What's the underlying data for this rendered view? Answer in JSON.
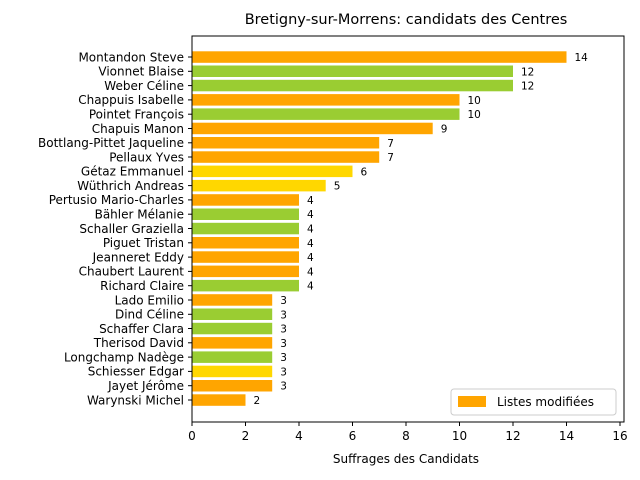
{
  "chart_data": {
    "type": "bar",
    "orientation": "horizontal",
    "title": "Bretigny-sur-Morrens: candidats des Centres",
    "xlabel": "Suffrages des Candidats",
    "ylabel": "",
    "xlim": [
      0,
      16
    ],
    "xticks": [
      "0",
      "2",
      "4",
      "6",
      "8",
      "10",
      "12",
      "14",
      "16"
    ],
    "grid": false,
    "legend": {
      "position": "lower-right",
      "entries": [
        {
          "label": "Listes modifiées",
          "color": "#ffa500"
        }
      ]
    },
    "bars": [
      {
        "name": "Montandon Steve",
        "value": 14,
        "color": "#ffa500"
      },
      {
        "name": "Vionnet Blaise",
        "value": 12,
        "color": "#9acd32"
      },
      {
        "name": "Weber Céline",
        "value": 12,
        "color": "#9acd32"
      },
      {
        "name": "Chappuis Isabelle",
        "value": 10,
        "color": "#ffa500"
      },
      {
        "name": "Pointet François",
        "value": 10,
        "color": "#9acd32"
      },
      {
        "name": "Chapuis Manon",
        "value": 9,
        "color": "#ffa500"
      },
      {
        "name": "Bottlang-Pittet Jaqueline",
        "value": 7,
        "color": "#ffa500"
      },
      {
        "name": "Pellaux Yves",
        "value": 7,
        "color": "#ffa500"
      },
      {
        "name": "Gétaz Emmanuel",
        "value": 6,
        "color": "#ffd700"
      },
      {
        "name": "Wüthrich Andreas",
        "value": 5,
        "color": "#ffd700"
      },
      {
        "name": "Pertusio Mario-Charles",
        "value": 4,
        "color": "#ffa500"
      },
      {
        "name": "Bähler Mélanie",
        "value": 4,
        "color": "#9acd32"
      },
      {
        "name": "Schaller Graziella",
        "value": 4,
        "color": "#9acd32"
      },
      {
        "name": "Piguet Tristan",
        "value": 4,
        "color": "#ffa500"
      },
      {
        "name": "Jeanneret Eddy",
        "value": 4,
        "color": "#ffa500"
      },
      {
        "name": "Chaubert Laurent",
        "value": 4,
        "color": "#ffa500"
      },
      {
        "name": "Richard Claire",
        "value": 4,
        "color": "#9acd32"
      },
      {
        "name": "Lado Emilio",
        "value": 3,
        "color": "#ffa500"
      },
      {
        "name": "Dind Céline",
        "value": 3,
        "color": "#9acd32"
      },
      {
        "name": "Schaffer Clara",
        "value": 3,
        "color": "#9acd32"
      },
      {
        "name": "Therisod David",
        "value": 3,
        "color": "#ffa500"
      },
      {
        "name": "Longchamp Nadège",
        "value": 3,
        "color": "#9acd32"
      },
      {
        "name": "Schiesser Edgar",
        "value": 3,
        "color": "#ffd700"
      },
      {
        "name": "Jayet Jérôme",
        "value": 3,
        "color": "#ffa500"
      },
      {
        "name": "Warynski Michel",
        "value": 2,
        "color": "#ffa500"
      }
    ]
  }
}
